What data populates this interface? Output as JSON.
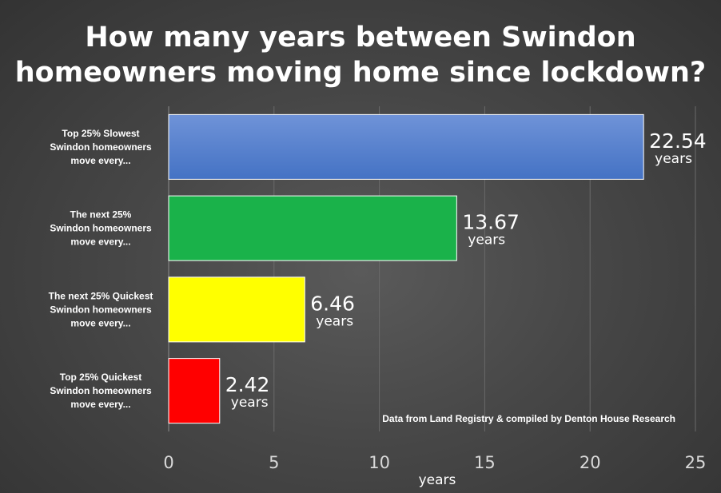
{
  "chart_data": {
    "type": "bar",
    "orientation": "horizontal",
    "title_lines": [
      "How many years between Swindon",
      "homeowners moving home since lockdown?"
    ],
    "categories": [
      [
        "Top 25% Slowest",
        "Swindon homeowners",
        "move every..."
      ],
      [
        "The next 25%",
        "Swindon homeowners",
        "move every..."
      ],
      [
        "The next 25% Quickest",
        "Swindon homeowners",
        "move every..."
      ],
      [
        "Top 25% Quickest",
        "Swindon homeowners",
        "move every..."
      ]
    ],
    "values": [
      22.54,
      13.67,
      6.46,
      2.42
    ],
    "value_labels": [
      "22.54",
      "13.67",
      "6.46",
      "2.42"
    ],
    "value_unit": "years",
    "bar_colors": [
      "#4472c4",
      "#1ab24a",
      "#ffff00",
      "#ff0000"
    ],
    "bar_gradient_top": [
      "#6f93d8",
      "#1ab24a",
      "#ffff00",
      "#ff0000"
    ],
    "xlabel": "years",
    "xlim": [
      0,
      25
    ],
    "xticks": [
      0,
      5,
      10,
      15,
      20,
      25
    ],
    "grid": true,
    "legend": "none",
    "source_note": "Data from Land Registry & compiled by Denton House Research"
  }
}
